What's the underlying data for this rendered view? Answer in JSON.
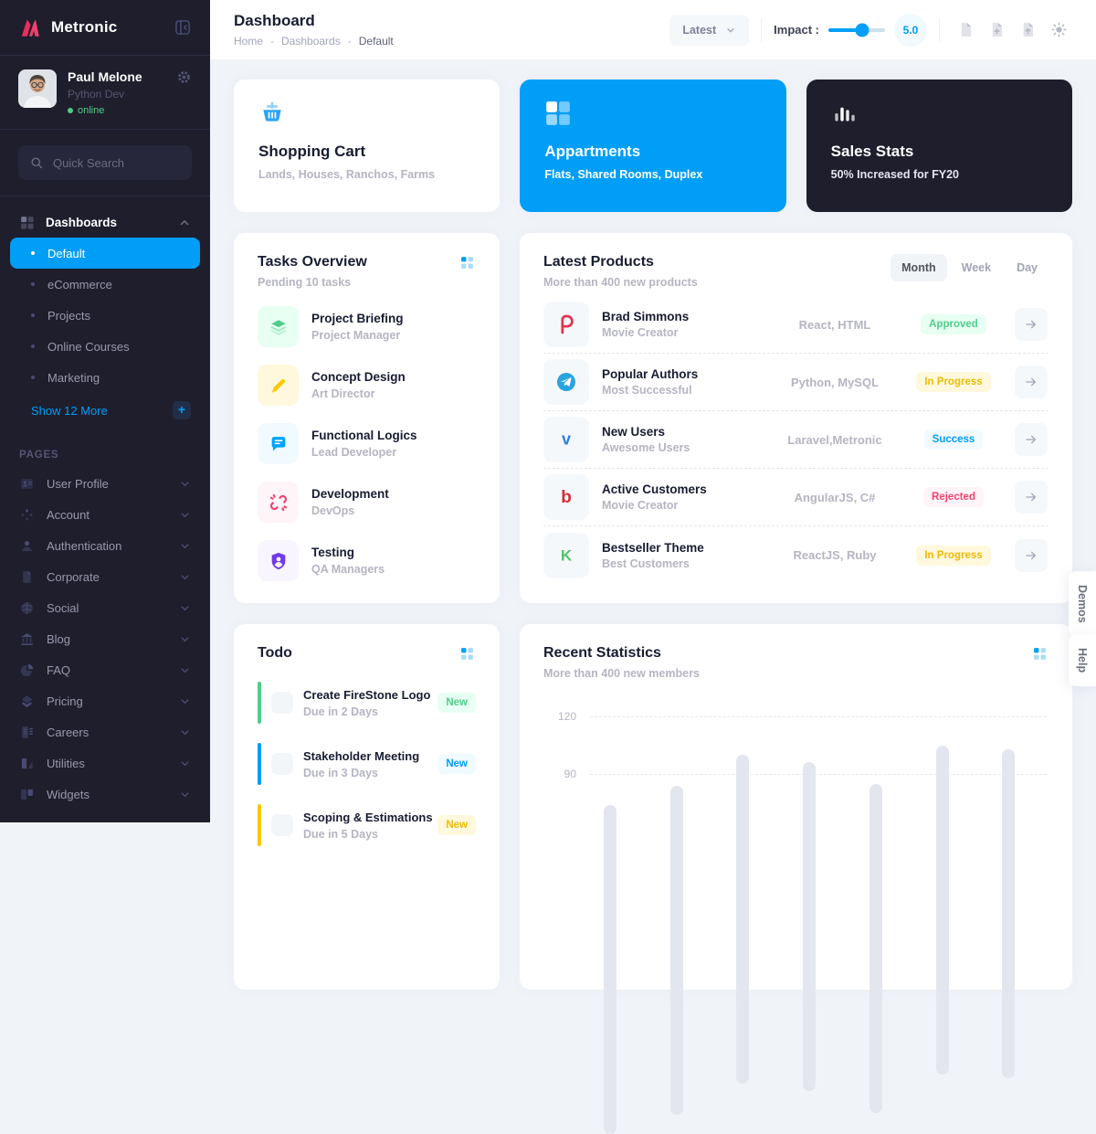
{
  "colors": {
    "primary": "#009ef7",
    "dark": "#1e1e2d",
    "success": "#50cd89",
    "warning": "#ffc700",
    "danger": "#f1416c",
    "info_purple": "#7239ea"
  },
  "sidebar": {
    "brand": "Metronic",
    "user": {
      "name": "Paul Melone",
      "role": "Python Dev",
      "status": "online"
    },
    "search_placeholder": "Quick Search",
    "dashboards": {
      "label": "Dashboards",
      "items": [
        {
          "label": "Default",
          "active": true
        },
        {
          "label": "eCommerce"
        },
        {
          "label": "Projects"
        },
        {
          "label": "Online Courses"
        },
        {
          "label": "Marketing"
        }
      ],
      "show_more": "Show 12 More"
    },
    "pages_label": "PAGES",
    "pages": [
      {
        "label": "User Profile",
        "icon": "user-profile-icon"
      },
      {
        "label": "Account",
        "icon": "account-icon"
      },
      {
        "label": "Authentication",
        "icon": "authentication-icon"
      },
      {
        "label": "Corporate",
        "icon": "corporate-icon"
      },
      {
        "label": "Social",
        "icon": "social-icon"
      },
      {
        "label": "Blog",
        "icon": "blog-icon"
      },
      {
        "label": "FAQ",
        "icon": "faq-icon"
      },
      {
        "label": "Pricing",
        "icon": "pricing-icon"
      },
      {
        "label": "Careers",
        "icon": "careers-icon"
      },
      {
        "label": "Utilities",
        "icon": "utilities-icon"
      },
      {
        "label": "Widgets",
        "icon": "widgets-icon"
      }
    ]
  },
  "header": {
    "title": "Dashboard",
    "breadcrumbs": [
      "Home",
      "Dashboards",
      "Default"
    ],
    "filter_label": "Latest",
    "impact_label": "Impact :",
    "impact_value": "5.0",
    "action_icons": [
      "file-icon",
      "file-plus-icon",
      "file-up-icon",
      "sun-icon"
    ]
  },
  "stat_cards": [
    {
      "title": "Shopping Cart",
      "subtitle": "Lands, Houses, Ranchos, Farms",
      "theme": "light",
      "icon": "basket-icon"
    },
    {
      "title": "Appartments",
      "subtitle": "Flats, Shared Rooms, Duplex",
      "theme": "primary",
      "icon": "squares-icon"
    },
    {
      "title": "Sales Stats",
      "subtitle": "50% Increased for FY20",
      "theme": "dark",
      "icon": "bars-icon"
    }
  ],
  "tasks": {
    "title": "Tasks Overview",
    "subtitle": "Pending 10 tasks",
    "items": [
      {
        "title": "Project Briefing",
        "subtitle": "Project Manager",
        "icon": "layers-icon",
        "color": "#50cd89",
        "bg": "#e8fff3"
      },
      {
        "title": "Concept Design",
        "subtitle": "Art Director",
        "icon": "pencil-icon",
        "color": "#ffc700",
        "bg": "#fff8dd"
      },
      {
        "title": "Functional Logics",
        "subtitle": "Lead Developer",
        "icon": "chat-icon",
        "color": "#00a3ff",
        "bg": "#f1faff"
      },
      {
        "title": "Development",
        "subtitle": "DevOps",
        "icon": "broken-link-icon",
        "color": "#f1416c",
        "bg": "#fff5f8"
      },
      {
        "title": "Testing",
        "subtitle": "QA Managers",
        "icon": "shield-user-icon",
        "color": "#7239ea",
        "bg": "#f8f5ff"
      }
    ]
  },
  "products": {
    "title": "Latest Products",
    "subtitle": "More than 400 new products",
    "tabs": [
      {
        "label": "Month",
        "active": true
      },
      {
        "label": "Week"
      },
      {
        "label": "Day"
      }
    ],
    "items": [
      {
        "title": "Brad Simmons",
        "subtitle": "Movie Creator",
        "tech": "React, HTML",
        "badge": "Approved",
        "badge_color": "#50cd89",
        "badge_bg": "#e8fff3",
        "icon": "plurk-icon",
        "icon_color": "#e8304b"
      },
      {
        "title": "Popular Authors",
        "subtitle": "Most Successful",
        "tech": "Python, MySQL",
        "badge": "In Progress",
        "badge_color": "#f0bb00",
        "badge_bg": "#fff8dd",
        "icon": "telegram-icon",
        "icon_color": "#2aa4e0"
      },
      {
        "title": "New Users",
        "subtitle": "Awesome Users",
        "tech": "Laravel,Metronic",
        "badge": "Success",
        "badge_color": "#009ef7",
        "badge_bg": "#f1faff",
        "icon": "vimeo-icon",
        "icon_color": "#2e7fe0"
      },
      {
        "title": "Active Customers",
        "subtitle": "Movie Creator",
        "tech": "AngularJS, C#",
        "badge": "Rejected",
        "badge_color": "#f1416c",
        "badge_bg": "#fff5f8",
        "icon": "bebo-icon",
        "icon_color": "#d92b33"
      },
      {
        "title": "Bestseller Theme",
        "subtitle": "Best Customers",
        "tech": "ReactJS, Ruby",
        "badge": "In Progress",
        "badge_color": "#f0bb00",
        "badge_bg": "#fff8dd",
        "icon": "kickstarter-icon",
        "icon_color": "#56c271"
      }
    ]
  },
  "todo": {
    "title": "Todo",
    "items": [
      {
        "title": "Create FireStone Logo",
        "due": "Due in 2 Days",
        "badge": "New",
        "color": "#50cd89",
        "badge_color": "#50cd89",
        "badge_bg": "#e8fff3"
      },
      {
        "title": "Stakeholder Meeting",
        "due": "Due in 3 Days",
        "badge": "New",
        "color": "#009ef7",
        "badge_color": "#009ef7",
        "badge_bg": "#f1faff"
      },
      {
        "title": "Scoping & Estimations",
        "due": "Due in 5 Days",
        "badge": "New",
        "color": "#ffc700",
        "badge_color": "#f0bb00",
        "badge_bg": "#fff8dd"
      }
    ]
  },
  "chart_data": {
    "type": "bar",
    "title": "Recent Statistics",
    "subtitle": "More than 400 new members",
    "yticks": [
      120,
      90
    ],
    "values": [
      74,
      84,
      100,
      96,
      85,
      105,
      103
    ],
    "bar_color": "#e4e6ef",
    "grid": "horizontal-dashed",
    "ylabel": "",
    "xlabel": ""
  },
  "side_tabs": {
    "demos": "Demos",
    "help": "Help"
  }
}
